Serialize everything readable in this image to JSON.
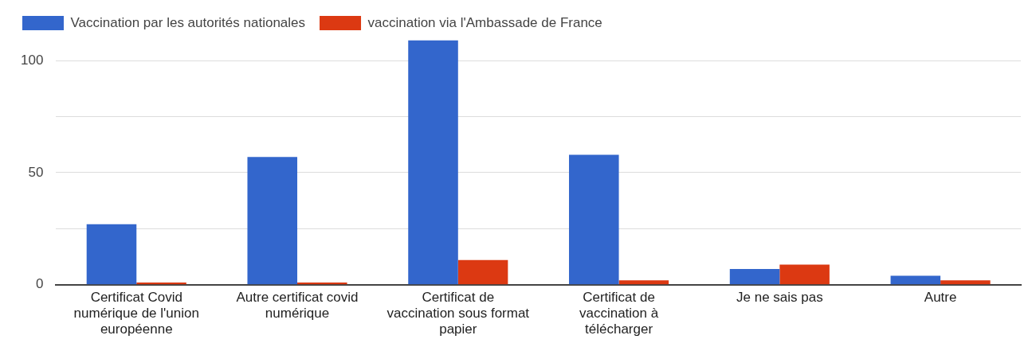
{
  "chart_data": {
    "type": "bar",
    "categories": [
      "Certificat Covid numérique de l'union européenne",
      "Autre certificat covid numérique",
      "Certificat de vaccination sous format papier",
      "Certificat de vaccination à télécharger",
      "Je ne sais pas",
      "Autre"
    ],
    "series": [
      {
        "name": "Vaccination par les autorités nationales",
        "color": "#3366cc",
        "values": [
          27,
          57,
          109,
          58,
          7,
          4
        ]
      },
      {
        "name": "vaccination via l'Ambassade de France",
        "color": "#dc3912",
        "values": [
          1,
          1,
          11,
          2,
          9,
          2
        ]
      }
    ],
    "ylim": [
      0,
      110
    ],
    "yticks": [
      0,
      {
        "value": 25,
        "label": null
      },
      50,
      {
        "value": 75,
        "label": null
      },
      100
    ],
    "grid": "y",
    "legend": "top left"
  }
}
